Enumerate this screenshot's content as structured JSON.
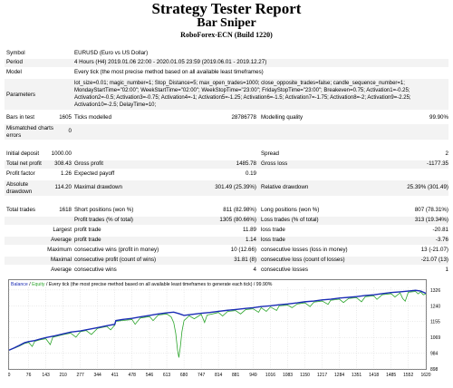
{
  "header": {
    "title": "Strategy Tester Report",
    "subtitle": "Bar Sniper",
    "broker": "RoboForex-ECN (Build 1220)"
  },
  "info": {
    "symbol_label": "Symbol",
    "symbol_value": "EURUSD (Euro vs US Dollar)",
    "period_label": "Period",
    "period_value": "4 Hours (H4) 2019.01.06 22:00 - 2020.01.05 23:59 (2019.06.01 - 2019.12.27)",
    "model_label": "Model",
    "model_value": "Every tick (the most precise method based on all available least timeframes)",
    "parameters_label": "Parameters",
    "parameters_value": "lot_size=0.01; magic_number=1; Stop_Distance=5; max_open_trades=1000; close_opposite_trades=false; candle_sequence_number=1; MondayStartTime=\"02:00\"; WeekStartTime=\"02:00\"; WeekStopTime=\"23:00\"; FridayStopTime=\"23:00\"; Breakeven=0.75; Activation1=-0.25; Activation2=-0.5; Activation3=-0.75; Activation4=-1; Activation5=-1.25; Activation6=-1.5; Activation7=-1.75; Activation8=-2; Activation9=-2.25; Activation10=-2.5; DelayTime=10;"
  },
  "stats": {
    "bars_label": "Bars in test",
    "bars_value": "1605",
    "ticks_label": "Ticks modelled",
    "ticks_value": "28786778",
    "quality_label": "Modelling quality",
    "quality_value": "99.90%",
    "mismatch_label": "Mismatched charts errors",
    "mismatch_value": "0",
    "deposit_label": "Initial deposit",
    "deposit_value": "1000.00",
    "spread_label": "Spread",
    "spread_value": "2",
    "netprofit_label": "Total net profit",
    "netprofit_value": "308.43",
    "grossprofit_label": "Gross profit",
    "grossprofit_value": "1485.78",
    "grossloss_label": "Gross loss",
    "grossloss_value": "-1177.35",
    "pf_label": "Profit factor",
    "pf_value": "1.26",
    "payoff_label": "Expected payoff",
    "payoff_value": "0.19",
    "absdd_label": "Absolute drawdown",
    "absdd_value": "114.20",
    "maxdd_label": "Maximal drawdown",
    "maxdd_value": "301.49 (25.39%)",
    "reldd_label": "Relative drawdown",
    "reldd_value": "25.39% (301.49)",
    "trades_label": "Total trades",
    "trades_value": "1618",
    "short_label": "Short positions (won %)",
    "short_value": "811 (82.98%)",
    "long_label": "Long positions (won %)",
    "long_value": "807 (78.31%)",
    "profittrades_label": "Profit trades (% of total)",
    "profittrades_value": "1305 (80.66%)",
    "losstrades_label": "Loss trades (% of total)",
    "losstrades_value": "313 (19.34%)",
    "largest_label": "Largest",
    "largest_profit_label": "profit trade",
    "largest_profit_value": "11.89",
    "largest_loss_label": "loss trade",
    "largest_loss_value": "-20.81",
    "average_label": "Average",
    "average_profit_label": "profit trade",
    "average_profit_value": "1.14",
    "average_loss_label": "loss trade",
    "average_loss_value": "-3.76",
    "maximum_label": "Maximum",
    "max_wins_label": "consecutive wins (profit in money)",
    "max_wins_value": "10 (12.66)",
    "max_losses_label": "consecutive losses (loss in money)",
    "max_losses_value": "13 (-21.07)",
    "maximal_label": "Maximal",
    "maximal_profit_label": "consecutive profit (count of wins)",
    "maximal_profit_value": "31.81 (8)",
    "maximal_loss_label": "consecutive loss (count of losses)",
    "maximal_loss_value": "-21.07 (13)",
    "avg2_label": "Average",
    "avg_wins_label": "consecutive wins",
    "avg_wins_value": "4",
    "avg_losses_label": "consecutive losses",
    "avg_losses_value": "1"
  },
  "chart_data": {
    "type": "line",
    "legend": {
      "balance": "Balance",
      "sep": " / ",
      "equity": "Equity",
      "note": " / Every tick (the most precise method based on all available least timeframes to generate each tick) / 99.90%"
    },
    "xlabel": "",
    "ylabel": "",
    "x_ticks": [
      "0",
      "76",
      "143",
      "210",
      "277",
      "344",
      "411",
      "478",
      "546",
      "613",
      "680",
      "747",
      "814",
      "881",
      "949",
      "1016",
      "1083",
      "1150",
      "1217",
      "1284",
      "1351",
      "1418",
      "1485",
      "1552",
      "1620"
    ],
    "y_ticks": [
      1326,
      1240,
      1155,
      1069,
      984,
      898
    ],
    "xlim": [
      0,
      1620
    ],
    "ylim": [
      898,
      1340
    ],
    "colors": {
      "balance": "#1b2db5",
      "equity": "#2ca52c",
      "grid": "#c9c9c9",
      "frame": "#808080"
    },
    "balance": [
      [
        0,
        1000
      ],
      [
        20,
        1012
      ],
      [
        40,
        1026
      ],
      [
        60,
        1040
      ],
      [
        76,
        1046
      ],
      [
        100,
        1052
      ],
      [
        120,
        1060
      ],
      [
        143,
        1068
      ],
      [
        180,
        1078
      ],
      [
        210,
        1088
      ],
      [
        240,
        1098
      ],
      [
        277,
        1104
      ],
      [
        300,
        1110
      ],
      [
        344,
        1122
      ],
      [
        380,
        1132
      ],
      [
        411,
        1140
      ],
      [
        415,
        1160
      ],
      [
        440,
        1166
      ],
      [
        478,
        1172
      ],
      [
        510,
        1180
      ],
      [
        546,
        1188
      ],
      [
        580,
        1196
      ],
      [
        613,
        1202
      ],
      [
        640,
        1206
      ],
      [
        660,
        1198
      ],
      [
        680,
        1188
      ],
      [
        700,
        1192
      ],
      [
        747,
        1200
      ],
      [
        780,
        1204
      ],
      [
        814,
        1210
      ],
      [
        850,
        1216
      ],
      [
        881,
        1220
      ],
      [
        920,
        1226
      ],
      [
        949,
        1230
      ],
      [
        980,
        1236
      ],
      [
        1016,
        1240
      ],
      [
        1050,
        1246
      ],
      [
        1083,
        1250
      ],
      [
        1120,
        1256
      ],
      [
        1150,
        1262
      ],
      [
        1185,
        1266
      ],
      [
        1217,
        1272
      ],
      [
        1250,
        1276
      ],
      [
        1284,
        1282
      ],
      [
        1320,
        1286
      ],
      [
        1351,
        1290
      ],
      [
        1385,
        1296
      ],
      [
        1418,
        1300
      ],
      [
        1450,
        1306
      ],
      [
        1485,
        1312
      ],
      [
        1520,
        1316
      ],
      [
        1552,
        1320
      ],
      [
        1580,
        1324
      ],
      [
        1600,
        1320
      ],
      [
        1620,
        1308
      ]
    ],
    "equity": [
      [
        0,
        1000
      ],
      [
        20,
        1010
      ],
      [
        40,
        1022
      ],
      [
        60,
        1036
      ],
      [
        76,
        1042
      ],
      [
        90,
        1020
      ],
      [
        100,
        1048
      ],
      [
        120,
        1056
      ],
      [
        143,
        1062
      ],
      [
        160,
        1030
      ],
      [
        170,
        1070
      ],
      [
        210,
        1084
      ],
      [
        240,
        1092
      ],
      [
        260,
        1070
      ],
      [
        277,
        1100
      ],
      [
        300,
        1106
      ],
      [
        320,
        1085
      ],
      [
        344,
        1118
      ],
      [
        380,
        1128
      ],
      [
        395,
        1110
      ],
      [
        411,
        1136
      ],
      [
        415,
        1156
      ],
      [
        440,
        1160
      ],
      [
        478,
        1166
      ],
      [
        490,
        1140
      ],
      [
        510,
        1174
      ],
      [
        546,
        1182
      ],
      [
        560,
        1160
      ],
      [
        580,
        1190
      ],
      [
        613,
        1196
      ],
      [
        630,
        1180
      ],
      [
        640,
        1150
      ],
      [
        648,
        1090
      ],
      [
        655,
        1000
      ],
      [
        660,
        960
      ],
      [
        666,
        1020
      ],
      [
        672,
        1100
      ],
      [
        680,
        1160
      ],
      [
        700,
        1186
      ],
      [
        720,
        1170
      ],
      [
        747,
        1194
      ],
      [
        760,
        1150
      ],
      [
        770,
        1190
      ],
      [
        790,
        1196
      ],
      [
        814,
        1204
      ],
      [
        830,
        1185
      ],
      [
        850,
        1210
      ],
      [
        881,
        1214
      ],
      [
        900,
        1196
      ],
      [
        920,
        1220
      ],
      [
        949,
        1224
      ],
      [
        970,
        1205
      ],
      [
        980,
        1230
      ],
      [
        1000,
        1210
      ],
      [
        1016,
        1234
      ],
      [
        1040,
        1215
      ],
      [
        1050,
        1240
      ],
      [
        1083,
        1244
      ],
      [
        1100,
        1230
      ],
      [
        1120,
        1250
      ],
      [
        1150,
        1256
      ],
      [
        1170,
        1236
      ],
      [
        1185,
        1260
      ],
      [
        1217,
        1266
      ],
      [
        1240,
        1248
      ],
      [
        1250,
        1270
      ],
      [
        1284,
        1276
      ],
      [
        1300,
        1258
      ],
      [
        1320,
        1280
      ],
      [
        1351,
        1284
      ],
      [
        1370,
        1262
      ],
      [
        1385,
        1290
      ],
      [
        1418,
        1294
      ],
      [
        1430,
        1275
      ],
      [
        1450,
        1300
      ],
      [
        1485,
        1306
      ],
      [
        1500,
        1288
      ],
      [
        1520,
        1310
      ],
      [
        1530,
        1280
      ],
      [
        1540,
        1265
      ],
      [
        1552,
        1314
      ],
      [
        1580,
        1318
      ],
      [
        1590,
        1305
      ],
      [
        1600,
        1316
      ],
      [
        1610,
        1300
      ],
      [
        1620,
        1304
      ]
    ]
  }
}
